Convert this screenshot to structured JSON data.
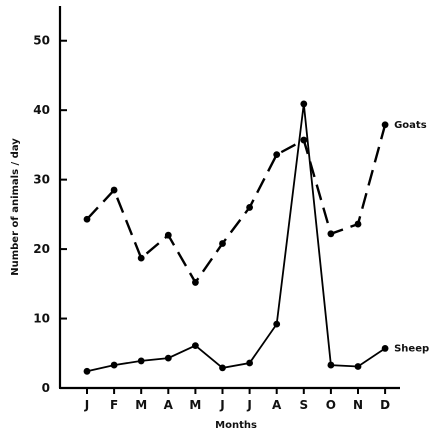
{
  "chart_data": {
    "type": "line",
    "title": "",
    "xlabel": "Months",
    "ylabel": "Number of animals / day",
    "ylim": [
      0,
      55
    ],
    "yticks": [
      "0",
      "10",
      "20",
      "30",
      "40",
      "50"
    ],
    "categories": [
      "J",
      "F",
      "M",
      "A",
      "M",
      "J",
      "J",
      "A",
      "S",
      "O",
      "N",
      "D"
    ],
    "grid": false,
    "series": [
      {
        "name": "Goats",
        "line_style": "dashed",
        "values": [
          24.3,
          28.5,
          18.7,
          22.0,
          15.2,
          20.8,
          26.0,
          33.6,
          35.7,
          22.2,
          23.6,
          37.9
        ]
      },
      {
        "name": "Sheep",
        "line_style": "solid",
        "values": [
          2.4,
          3.3,
          3.9,
          4.3,
          6.1,
          2.9,
          3.6,
          9.2,
          40.9,
          3.3,
          3.1,
          5.7
        ]
      }
    ]
  }
}
